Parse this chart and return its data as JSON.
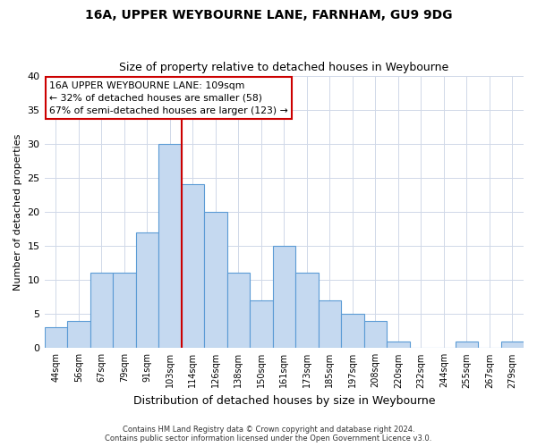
{
  "title1": "16A, UPPER WEYBOURNE LANE, FARNHAM, GU9 9DG",
  "title2": "Size of property relative to detached houses in Weybourne",
  "xlabel": "Distribution of detached houses by size in Weybourne",
  "ylabel": "Number of detached properties",
  "categories": [
    "44sqm",
    "56sqm",
    "67sqm",
    "79sqm",
    "91sqm",
    "103sqm",
    "114sqm",
    "126sqm",
    "138sqm",
    "150sqm",
    "161sqm",
    "173sqm",
    "185sqm",
    "197sqm",
    "208sqm",
    "220sqm",
    "232sqm",
    "244sqm",
    "255sqm",
    "267sqm",
    "279sqm"
  ],
  "values": [
    3,
    4,
    11,
    11,
    17,
    30,
    24,
    20,
    11,
    7,
    15,
    11,
    7,
    5,
    4,
    1,
    0,
    0,
    1,
    0,
    1
  ],
  "bar_color": "#c5d9f0",
  "bar_edge_color": "#5b9bd5",
  "vline_x": 5.5,
  "vline_color": "#cc0000",
  "annotation_line1": "16A UPPER WEYBOURNE LANE: 109sqm",
  "annotation_line2": "← 32% of detached houses are smaller (58)",
  "annotation_line3": "67% of semi-detached houses are larger (123) →",
  "annotation_box_color": "#ffffff",
  "annotation_box_edge": "#cc0000",
  "ylim": [
    0,
    40
  ],
  "yticks": [
    0,
    5,
    10,
    15,
    20,
    25,
    30,
    35,
    40
  ],
  "footer1": "Contains HM Land Registry data © Crown copyright and database right 2024.",
  "footer2": "Contains public sector information licensed under the Open Government Licence v3.0.",
  "bg_color": "#ffffff",
  "plot_bg_color": "#ffffff",
  "grid_color": "#d0d8e8"
}
